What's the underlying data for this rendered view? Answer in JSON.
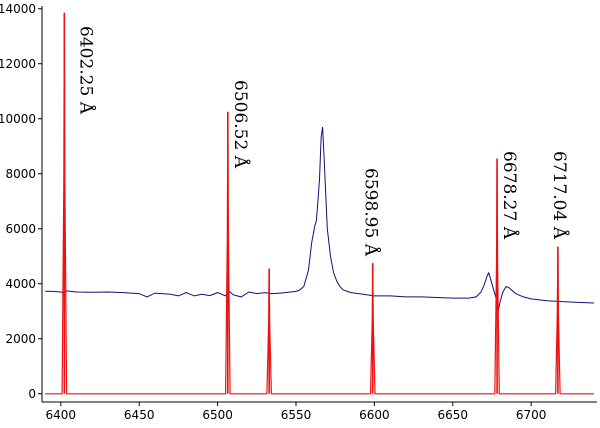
{
  "chart_data": {
    "type": "line",
    "title": "",
    "xlabel": "",
    "ylabel": "",
    "xlim": [
      6388,
      6742
    ],
    "ylim": [
      -300,
      14100
    ],
    "x_ticks": [
      6400,
      6450,
      6500,
      6550,
      6600,
      6650,
      6700
    ],
    "y_ticks": [
      0,
      2000,
      4000,
      6000,
      8000,
      10000,
      12000,
      14000
    ],
    "colors": {
      "reference": "#ee1111",
      "spectrum": "#10107a"
    },
    "annotations": [
      "6402.25 Å",
      "6506.52 Å",
      "6598.95 Å",
      "6678.27 Å",
      "6717.04 Å"
    ],
    "series": [
      {
        "key": "reference",
        "baseline": 0,
        "peaks": [
          {
            "x": 6402.25,
            "y": 13850
          },
          {
            "x": 6506.52,
            "y": 10250
          },
          {
            "x": 6532.9,
            "y": 4550
          },
          {
            "x": 6598.95,
            "y": 4750
          },
          {
            "x": 6678.27,
            "y": 8550
          },
          {
            "x": 6717.04,
            "y": 5350
          }
        ]
      },
      {
        "key": "spectrum",
        "points": [
          [
            6390,
            3730
          ],
          [
            6395,
            3720
          ],
          [
            6400,
            3700
          ],
          [
            6402,
            3660
          ],
          [
            6404,
            3740
          ],
          [
            6410,
            3700
          ],
          [
            6420,
            3690
          ],
          [
            6430,
            3700
          ],
          [
            6440,
            3680
          ],
          [
            6450,
            3640
          ],
          [
            6455,
            3520
          ],
          [
            6460,
            3660
          ],
          [
            6470,
            3620
          ],
          [
            6475,
            3560
          ],
          [
            6480,
            3680
          ],
          [
            6485,
            3560
          ],
          [
            6490,
            3620
          ],
          [
            6495,
            3570
          ],
          [
            6500,
            3680
          ],
          [
            6505,
            3560
          ],
          [
            6507,
            3740
          ],
          [
            6510,
            3600
          ],
          [
            6515,
            3520
          ],
          [
            6520,
            3700
          ],
          [
            6525,
            3640
          ],
          [
            6530,
            3680
          ],
          [
            6535,
            3640
          ],
          [
            6540,
            3660
          ],
          [
            6545,
            3690
          ],
          [
            6550,
            3720
          ],
          [
            6552,
            3760
          ],
          [
            6555,
            3900
          ],
          [
            6558,
            4500
          ],
          [
            6560,
            5500
          ],
          [
            6562,
            6100
          ],
          [
            6563,
            6300
          ],
          [
            6564,
            7000
          ],
          [
            6565,
            7800
          ],
          [
            6566,
            9300
          ],
          [
            6567,
            9700
          ],
          [
            6568,
            8500
          ],
          [
            6569,
            7200
          ],
          [
            6570,
            6000
          ],
          [
            6572,
            5000
          ],
          [
            6574,
            4400
          ],
          [
            6576,
            4100
          ],
          [
            6578,
            3900
          ],
          [
            6580,
            3780
          ],
          [
            6585,
            3680
          ],
          [
            6590,
            3640
          ],
          [
            6595,
            3600
          ],
          [
            6600,
            3560
          ],
          [
            6610,
            3560
          ],
          [
            6620,
            3520
          ],
          [
            6630,
            3520
          ],
          [
            6640,
            3500
          ],
          [
            6650,
            3480
          ],
          [
            6660,
            3480
          ],
          [
            6665,
            3520
          ],
          [
            6668,
            3700
          ],
          [
            6670,
            3950
          ],
          [
            6672,
            4300
          ],
          [
            6673,
            4400
          ],
          [
            6674,
            4200
          ],
          [
            6676,
            3800
          ],
          [
            6678,
            3400
          ],
          [
            6679,
            3000
          ],
          [
            6680,
            3300
          ],
          [
            6682,
            3700
          ],
          [
            6684,
            3900
          ],
          [
            6686,
            3850
          ],
          [
            6690,
            3650
          ],
          [
            6695,
            3520
          ],
          [
            6700,
            3450
          ],
          [
            6710,
            3380
          ],
          [
            6720,
            3350
          ],
          [
            6730,
            3320
          ],
          [
            6740,
            3300
          ]
        ]
      }
    ]
  }
}
